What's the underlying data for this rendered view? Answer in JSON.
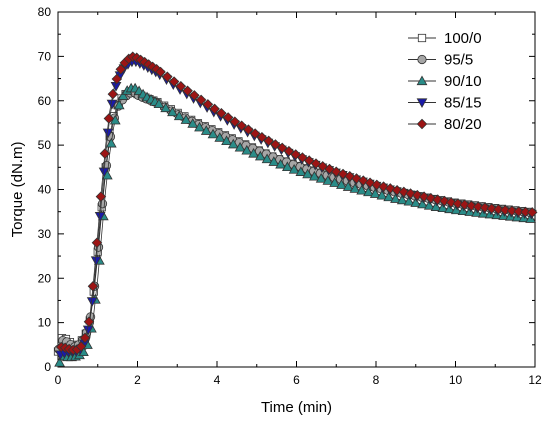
{
  "chart_data": {
    "type": "scatter",
    "xlabel": "Time (min)",
    "ylabel": "Torque (dN.m)",
    "xlim": [
      0,
      12
    ],
    "ylim": [
      0,
      80
    ],
    "xticks": [
      "0",
      "2",
      "4",
      "6",
      "8",
      "10",
      "12"
    ],
    "yticks": [
      "0",
      "10",
      "20",
      "30",
      "40",
      "50",
      "60",
      "70",
      "80"
    ],
    "grid": false,
    "legend_position": "top-right",
    "series": [
      {
        "name": "100/0",
        "marker": "square",
        "color": "#ffffff",
        "peak_x": 1.95,
        "peak_y": 62,
        "x": [
          0,
          0.1,
          0.2,
          0.3,
          0.4,
          0.5,
          0.6,
          0.7,
          0.8,
          0.9,
          1.0,
          1.1,
          1.2,
          1.3,
          1.4,
          1.5,
          1.6,
          1.7,
          1.8,
          1.9,
          2.0,
          2.2,
          2.5,
          3.0,
          3.5,
          4.0,
          4.5,
          5.0,
          5.5,
          6.0,
          6.5,
          7.0,
          7.5,
          8.0,
          8.5,
          9.0,
          9.5,
          10.0,
          10.5,
          11.0,
          11.5,
          12.0
        ],
        "y": [
          3.5,
          6.5,
          6.3,
          5.6,
          4.8,
          5.0,
          6.0,
          7.5,
          10.5,
          17,
          26,
          36,
          45,
          52,
          56.5,
          59,
          60.5,
          61.5,
          62,
          62,
          61.5,
          60.7,
          59.7,
          57.3,
          55,
          53,
          51,
          49,
          47,
          45.5,
          44,
          42.7,
          41.5,
          40.5,
          39.5,
          38.7,
          37.8,
          37,
          36.4,
          35.8,
          35.3,
          34.8
        ]
      },
      {
        "name": "95/5",
        "marker": "circle",
        "color": "#a6a6a6",
        "peak_x": 1.95,
        "peak_y": 62,
        "x": [
          0,
          0.1,
          0.2,
          0.3,
          0.4,
          0.5,
          0.6,
          0.7,
          0.8,
          0.9,
          1.0,
          1.1,
          1.2,
          1.3,
          1.4,
          1.5,
          1.6,
          1.7,
          1.8,
          1.9,
          2.0,
          2.2,
          2.5,
          3.0,
          3.5,
          4.0,
          4.5,
          5.0,
          5.5,
          6.0,
          6.5,
          7.0,
          7.5,
          8.0,
          8.5,
          9.0,
          9.5,
          10.0,
          10.5,
          11.0,
          11.5,
          12.0
        ],
        "y": [
          3.5,
          6.0,
          5.8,
          5.2,
          4.5,
          4.8,
          5.8,
          7.2,
          10,
          16.5,
          25,
          35,
          44,
          51,
          55.5,
          58.5,
          60,
          61,
          61.7,
          62,
          61.3,
          60.5,
          59.5,
          57,
          54.8,
          52.8,
          50.8,
          48.9,
          47,
          45.4,
          43.9,
          42.6,
          41.4,
          40.4,
          39.4,
          38.5,
          37.7,
          36.9,
          36.3,
          35.7,
          35.2,
          34.7
        ]
      },
      {
        "name": "90/10",
        "marker": "triangle-up",
        "color": "#2a8c88",
        "peak_x": 2.0,
        "peak_y": 63,
        "x": [
          0,
          0.1,
          0.2,
          0.3,
          0.4,
          0.5,
          0.6,
          0.7,
          0.8,
          0.9,
          1.0,
          1.1,
          1.2,
          1.3,
          1.4,
          1.5,
          1.6,
          1.7,
          1.8,
          1.9,
          2.0,
          2.2,
          2.5,
          3.0,
          3.5,
          4.0,
          4.5,
          5.0,
          5.5,
          6.0,
          6.5,
          7.0,
          7.5,
          8.0,
          8.5,
          9.0,
          9.5,
          10.0,
          10.5,
          11.0,
          11.5,
          12.0
        ],
        "y": [
          0,
          2.5,
          2.3,
          2.2,
          2.3,
          2.5,
          3.0,
          4.0,
          6.5,
          12,
          20,
          30,
          40,
          48,
          54,
          58,
          60.5,
          62,
          62.7,
          63,
          62.5,
          61,
          59.5,
          56.8,
          54.3,
          52,
          49.8,
          47.8,
          46,
          44.3,
          42.8,
          41.4,
          40.1,
          39,
          37.9,
          37,
          36.1,
          35.4,
          34.8,
          34.3,
          33.8,
          33.3
        ]
      },
      {
        "name": "85/15",
        "marker": "triangle-down",
        "color": "#1a1aa8",
        "peak_x": 1.9,
        "peak_y": 69,
        "x": [
          0,
          0.1,
          0.2,
          0.3,
          0.4,
          0.5,
          0.6,
          0.7,
          0.8,
          0.9,
          1.0,
          1.1,
          1.2,
          1.3,
          1.4,
          1.5,
          1.6,
          1.7,
          1.8,
          1.9,
          2.0,
          2.2,
          2.5,
          3.0,
          3.5,
          4.0,
          4.5,
          5.0,
          5.5,
          6.0,
          6.5,
          7.0,
          7.5,
          8.0,
          8.5,
          9.0,
          9.5,
          10.0,
          10.5,
          11.0,
          11.5,
          12.0
        ],
        "y": [
          2.5,
          3.0,
          3.2,
          3.5,
          3.4,
          3.5,
          4.2,
          6,
          10,
          18,
          28,
          38,
          48,
          56,
          61.5,
          64.5,
          66.5,
          67.8,
          68.5,
          69,
          68.7,
          67.8,
          66.3,
          63,
          60,
          57,
          54.3,
          51.8,
          49.5,
          47.3,
          45.4,
          43.7,
          42.2,
          40.8,
          39.6,
          38.5,
          37.5,
          36.6,
          35.9,
          35.3,
          34.8,
          34.4
        ]
      },
      {
        "name": "80/20",
        "marker": "diamond",
        "color": "#9c1414",
        "peak_x": 1.85,
        "peak_y": 70,
        "x": [
          0,
          0.1,
          0.2,
          0.3,
          0.4,
          0.5,
          0.6,
          0.7,
          0.8,
          0.9,
          1.0,
          1.1,
          1.2,
          1.3,
          1.4,
          1.5,
          1.6,
          1.7,
          1.8,
          1.9,
          2.0,
          2.2,
          2.5,
          3.0,
          3.5,
          4.0,
          4.5,
          5.0,
          5.5,
          6.0,
          6.5,
          7.0,
          7.5,
          8.0,
          8.5,
          9.0,
          9.5,
          10.0,
          10.5,
          11.0,
          11.5,
          12.0
        ],
        "y": [
          4.5,
          4.5,
          4.3,
          4.0,
          3.8,
          4.0,
          4.8,
          7,
          11,
          20,
          30,
          40.5,
          50,
          57.5,
          62.5,
          65.5,
          67.5,
          68.8,
          69.6,
          70,
          69.6,
          68.6,
          67,
          63.8,
          60.8,
          57.8,
          55,
          52.4,
          50,
          47.8,
          45.8,
          44,
          42.5,
          41.1,
          39.9,
          38.8,
          37.8,
          36.9,
          36.2,
          35.6,
          35.1,
          34.8
        ]
      }
    ]
  }
}
